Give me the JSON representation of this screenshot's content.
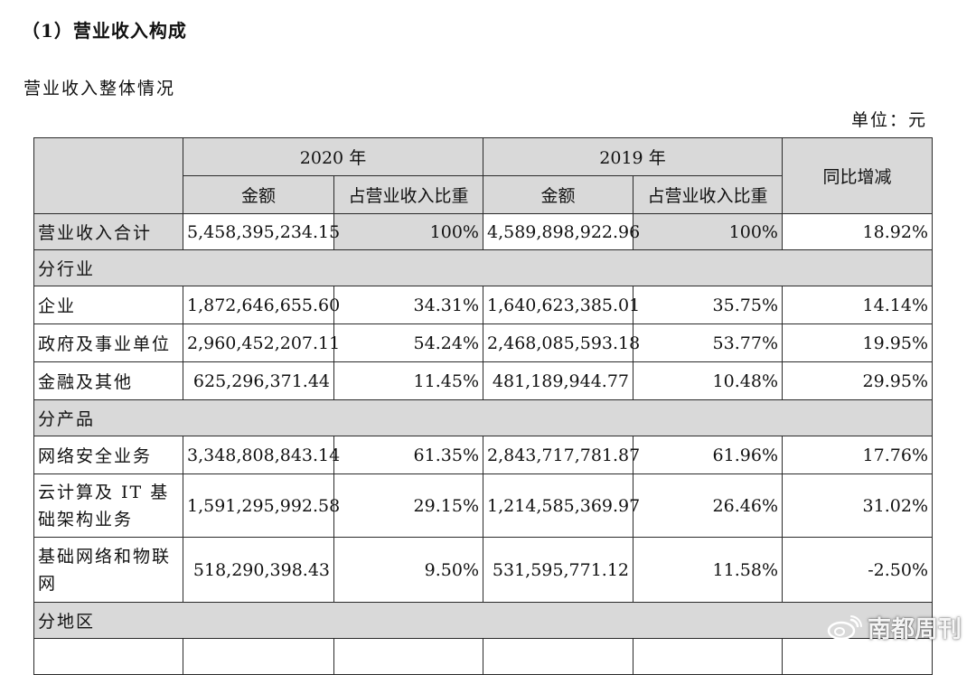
{
  "heading": "（1）营业收入构成",
  "subtitle": "营业收入整体情况",
  "unit": "单位：元",
  "columns": {
    "year1": "2020 年",
    "year2": "2019 年",
    "yoy": "同比增减",
    "amount": "金额",
    "share": "占营业收入比重"
  },
  "total": {
    "label": "营业收入合计",
    "amt2020": "5,458,395,234.15",
    "pct2020": "100%",
    "amt2019": "4,589,898,922.96",
    "pct2019": "100%",
    "yoy": "18.92%"
  },
  "sections": {
    "industry": "分行业",
    "product": "分产品",
    "region": "分地区"
  },
  "rows": [
    {
      "label": "企业",
      "amt2020": "1,872,646,655.60",
      "pct2020": "34.31%",
      "amt2019": "1,640,623,385.01",
      "pct2019": "35.75%",
      "yoy": "14.14%"
    },
    {
      "label": "政府及事业单位",
      "amt2020": "2,960,452,207.11",
      "pct2020": "54.24%",
      "amt2019": "2,468,085,593.18",
      "pct2019": "53.77%",
      "yoy": "19.95%"
    },
    {
      "label": "金融及其他",
      "amt2020": "625,296,371.44",
      "pct2020": "11.45%",
      "amt2019": "481,189,944.77",
      "pct2019": "10.48%",
      "yoy": "29.95%"
    },
    {
      "label": "网络安全业务",
      "amt2020": "3,348,808,843.14",
      "pct2020": "61.35%",
      "amt2019": "2,843,717,781.87",
      "pct2019": "61.96%",
      "yoy": "17.76%"
    },
    {
      "label": "云计算及 IT 基础架构业务",
      "amt2020": "1,591,295,992.58",
      "pct2020": "29.15%",
      "amt2019": "1,214,585,369.97",
      "pct2019": "26.46%",
      "yoy": "31.02%"
    },
    {
      "label": "基础网络和物联网",
      "amt2020": "518,290,398.43",
      "pct2020": "9.50%",
      "amt2019": "531,595,771.12",
      "pct2019": "11.58%",
      "yoy": "-2.50%"
    }
  ],
  "watermark": "南都周刊"
}
